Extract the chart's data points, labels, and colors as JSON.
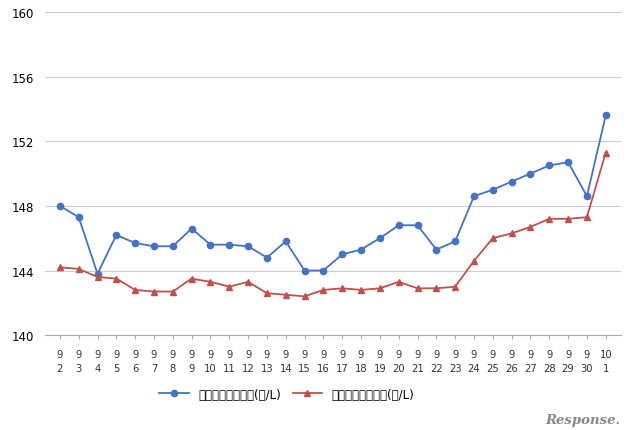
{
  "x_labels": [
    [
      "9",
      "2"
    ],
    [
      "9",
      "3"
    ],
    [
      "9",
      "4"
    ],
    [
      "9",
      "5"
    ],
    [
      "9",
      "6"
    ],
    [
      "9",
      "7"
    ],
    [
      "9",
      "8"
    ],
    [
      "9",
      "9"
    ],
    [
      "9",
      "10"
    ],
    [
      "9",
      "11"
    ],
    [
      "9",
      "12"
    ],
    [
      "9",
      "13"
    ],
    [
      "9",
      "14"
    ],
    [
      "9",
      "15"
    ],
    [
      "9",
      "16"
    ],
    [
      "9",
      "17"
    ],
    [
      "9",
      "18"
    ],
    [
      "9",
      "19"
    ],
    [
      "9",
      "20"
    ],
    [
      "9",
      "21"
    ],
    [
      "9",
      "22"
    ],
    [
      "9",
      "23"
    ],
    [
      "9",
      "24"
    ],
    [
      "9",
      "25"
    ],
    [
      "9",
      "26"
    ],
    [
      "9",
      "27"
    ],
    [
      "9",
      "28"
    ],
    [
      "9",
      "29"
    ],
    [
      "9",
      "30"
    ],
    [
      "10",
      "1"
    ]
  ],
  "blue_values": [
    148.0,
    147.3,
    143.8,
    146.2,
    145.7,
    145.5,
    145.5,
    146.6,
    145.6,
    145.6,
    145.5,
    144.8,
    145.8,
    144.0,
    144.0,
    145.0,
    145.3,
    146.0,
    146.8,
    146.8,
    145.3,
    145.8,
    148.6,
    149.0,
    149.5,
    150.0,
    150.5,
    150.7,
    148.6,
    153.6
  ],
  "red_values": [
    144.2,
    144.1,
    143.6,
    143.5,
    142.8,
    142.7,
    142.7,
    143.5,
    143.3,
    143.0,
    143.3,
    142.6,
    142.5,
    142.4,
    142.8,
    142.9,
    142.8,
    142.9,
    143.3,
    142.9,
    142.9,
    143.0,
    144.6,
    146.0,
    146.3,
    146.7,
    147.2,
    147.2,
    147.3,
    151.3
  ],
  "blue_color": "#4472c4",
  "red_color": "#c0504d",
  "blue_label": "ハイオク看板価格(円/L)",
  "red_label": "ハイオク実売価格(円/L)",
  "ylim": [
    140,
    160
  ],
  "yticks": [
    140,
    144,
    148,
    152,
    156,
    160
  ],
  "background_color": "#ffffff",
  "grid_color": "#cccccc",
  "watermark": "Response.",
  "figsize": [
    6.4,
    4.31
  ],
  "dpi": 100
}
